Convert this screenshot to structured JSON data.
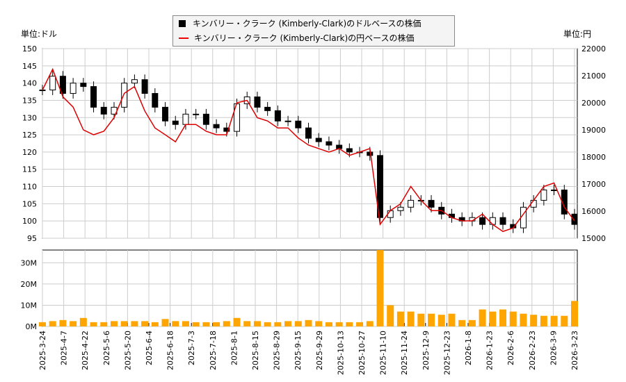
{
  "legend": {
    "usd": "キンバリー・クラーク (Kimberly-Clark)のドルベースの株価",
    "jpy": "キンバリー・クラーク (Kimberly-Clark)の円ベースの株価"
  },
  "units": {
    "left": "単位:ドル",
    "right": "単位:円"
  },
  "colors": {
    "usd": "#000000",
    "jpy": "#dd0000",
    "volume": "#ffa500",
    "grid": "#cccccc"
  },
  "chart_data": {
    "type": "candlestick+line+bar",
    "yleft": {
      "range": [
        95,
        150
      ],
      "ticks": [
        95,
        100,
        105,
        110,
        115,
        120,
        125,
        130,
        135,
        140,
        145,
        150
      ]
    },
    "yright": {
      "range": [
        15000,
        22000
      ],
      "ticks": [
        15000,
        16000,
        17000,
        18000,
        19000,
        20000,
        21000,
        22000
      ]
    },
    "yvolume": {
      "range": [
        0,
        36
      ],
      "ticks": [
        0,
        10,
        20,
        30
      ],
      "tick_labels": [
        "0M",
        "10M",
        "20M",
        "30M"
      ]
    },
    "xticks": [
      "2025-3-24",
      "2025-4-7",
      "2025-4-22",
      "2025-5-6",
      "2025-5-20",
      "2025-6-4",
      "2025-6-18",
      "2025-7-3",
      "2025-7-18",
      "2025-8-1",
      "2025-8-15",
      "2025-8-29",
      "2025-9-15",
      "2025-9-29",
      "2025-10-13",
      "2025-10-27",
      "2025-11-10",
      "2025-11-24",
      "2025-12-9",
      "2025-12-23",
      "2026-1-8",
      "2026-1-23",
      "2026-2-6",
      "2026-2-23",
      "2026-3-9",
      "2026-3-23"
    ],
    "grid": true,
    "legend_position": "top-center",
    "usd_close": [
      138,
      142,
      137,
      140,
      139,
      133,
      131,
      133,
      140,
      141,
      137,
      133,
      129,
      128,
      131,
      131,
      128,
      127,
      126,
      134,
      136,
      133,
      132,
      129,
      129,
      127,
      124,
      123,
      122,
      121,
      120,
      120,
      119,
      101,
      103,
      104,
      106,
      106,
      104,
      102,
      101,
      100,
      101,
      99,
      101,
      99,
      98,
      104,
      106,
      109,
      109,
      102,
      99
    ],
    "jpy_close": [
      20470,
      21240,
      20220,
      19840,
      19000,
      18820,
      18950,
      19450,
      20350,
      20600,
      19700,
      19070,
      18820,
      18560,
      19200,
      19200,
      18950,
      18820,
      18820,
      20000,
      20090,
      19450,
      19330,
      19070,
      19070,
      18700,
      18440,
      18310,
      18180,
      18310,
      18060,
      18180,
      18310,
      15510,
      16020,
      16270,
      16910,
      16400,
      16020,
      16020,
      15760,
      15640,
      15640,
      15890,
      15510,
      15250,
      15380,
      15890,
      16400,
      16910,
      17040,
      16150,
      15640
    ],
    "volume_m": [
      2,
      2.5,
      3,
      2.5,
      4,
      2,
      2,
      2.5,
      2.5,
      2.5,
      2.5,
      2,
      3.5,
      2.5,
      2.5,
      2,
      2,
      2,
      2.5,
      4,
      2.5,
      2.5,
      2,
      2,
      2.5,
      2.5,
      3,
      2.5,
      2,
      2,
      2,
      2,
      2.5,
      36,
      10,
      7,
      7,
      6,
      6,
      5.5,
      6,
      3,
      3,
      8,
      7,
      8,
      7,
      6,
      5.5,
      5,
      5,
      5,
      12
    ]
  }
}
